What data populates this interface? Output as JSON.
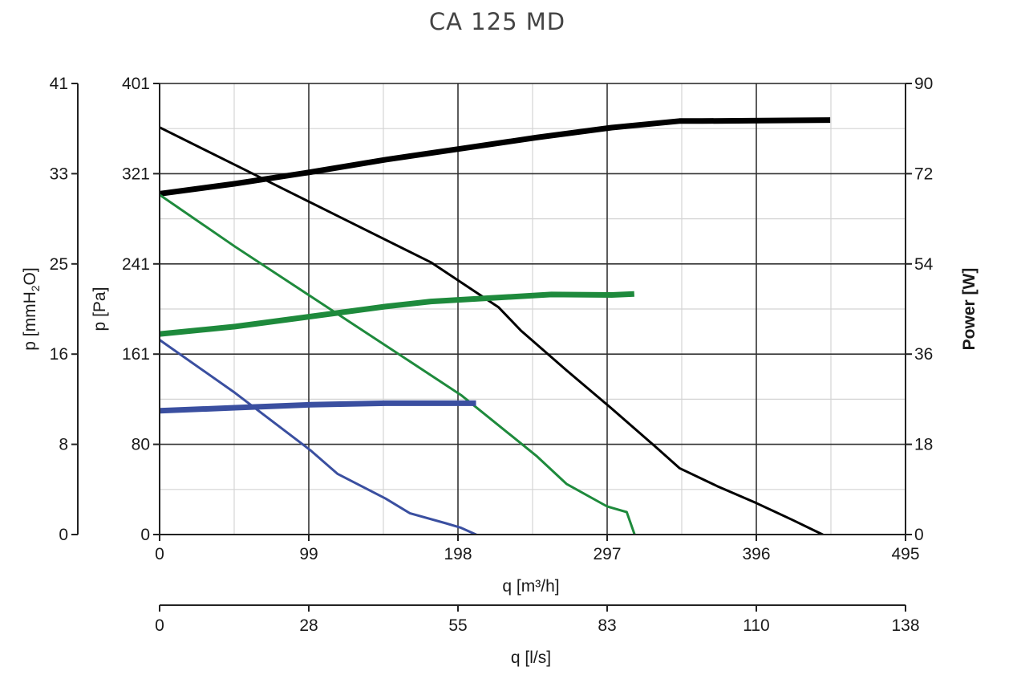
{
  "chart_data": {
    "type": "line",
    "title": "CA 125 MD",
    "xlabel": "q [m³/h]",
    "x2label": "q [l/s]",
    "ylabel": "p [Pa]",
    "y2label": "p [mmH2O]",
    "y2label_main": "p [mmH",
    "y2label_sub": "2",
    "y2label_end": "O]",
    "y3label": "Power [W]",
    "xlim": [
      0,
      495
    ],
    "ylim": [
      0,
      401
    ],
    "y3lim": [
      0,
      90
    ],
    "x_ticks": [
      "0",
      "99",
      "198",
      "297",
      "396",
      "495"
    ],
    "x2_ticks": [
      "0",
      "28",
      "55",
      "83",
      "110",
      "138"
    ],
    "y_ticks": [
      "0",
      "80",
      "161",
      "241",
      "321",
      "401"
    ],
    "y2_ticks": [
      "0",
      "8",
      "16",
      "25",
      "33",
      "41"
    ],
    "y3_ticks": [
      "0",
      "18",
      "36",
      "54",
      "72",
      "90"
    ],
    "grid": true,
    "colors": {
      "black": "#000000",
      "green": "#1e8a3c",
      "blue": "#3a4fa0"
    },
    "series": [
      {
        "kind": "pressure",
        "color": "#000000",
        "width": 3,
        "points": [
          [
            0,
            362
          ],
          [
            60,
            322
          ],
          [
            120,
            282
          ],
          [
            180,
            242
          ],
          [
            225,
            202
          ],
          [
            240,
            181
          ],
          [
            270,
            146
          ],
          [
            300,
            112
          ],
          [
            330,
            77
          ],
          [
            345,
            59
          ],
          [
            370,
            43
          ],
          [
            396,
            28
          ],
          [
            420,
            13
          ],
          [
            440,
            0
          ],
          [
            446,
            -7
          ]
        ]
      },
      {
        "kind": "power",
        "color": "#000000",
        "width": 7,
        "points": [
          [
            0,
            68
          ],
          [
            50,
            70
          ],
          [
            100,
            72.3
          ],
          [
            150,
            74.8
          ],
          [
            200,
            77
          ],
          [
            250,
            79.2
          ],
          [
            300,
            81.2
          ],
          [
            345,
            82.5
          ],
          [
            360,
            82.5
          ],
          [
            400,
            82.6
          ],
          [
            445,
            82.7
          ]
        ]
      },
      {
        "kind": "pressure",
        "color": "#1e8a3c",
        "width": 3,
        "points": [
          [
            0,
            302
          ],
          [
            50,
            256
          ],
          [
            100,
            212
          ],
          [
            150,
            168
          ],
          [
            200,
            124
          ],
          [
            250,
            70
          ],
          [
            270,
            45
          ],
          [
            297,
            25
          ],
          [
            310,
            20
          ],
          [
            316,
            -3
          ]
        ]
      },
      {
        "kind": "power",
        "color": "#1e8a3c",
        "width": 7,
        "points": [
          [
            0,
            40
          ],
          [
            50,
            41.5
          ],
          [
            100,
            43.5
          ],
          [
            150,
            45.5
          ],
          [
            180,
            46.5
          ],
          [
            220,
            47.2
          ],
          [
            260,
            47.9
          ],
          [
            300,
            47.8
          ],
          [
            315,
            48
          ]
        ]
      },
      {
        "kind": "pressure",
        "color": "#3a4fa0",
        "width": 3,
        "points": [
          [
            0,
            173
          ],
          [
            50,
            126
          ],
          [
            100,
            75
          ],
          [
            118,
            54
          ],
          [
            150,
            32
          ],
          [
            166,
            19
          ],
          [
            190,
            10
          ],
          [
            200,
            6
          ],
          [
            210,
            0
          ],
          [
            213,
            -4
          ]
        ]
      },
      {
        "kind": "power",
        "color": "#3a4fa0",
        "width": 7,
        "points": [
          [
            0,
            24.7
          ],
          [
            50,
            25.3
          ],
          [
            100,
            25.9
          ],
          [
            150,
            26.2
          ],
          [
            210,
            26.2
          ]
        ]
      }
    ]
  }
}
